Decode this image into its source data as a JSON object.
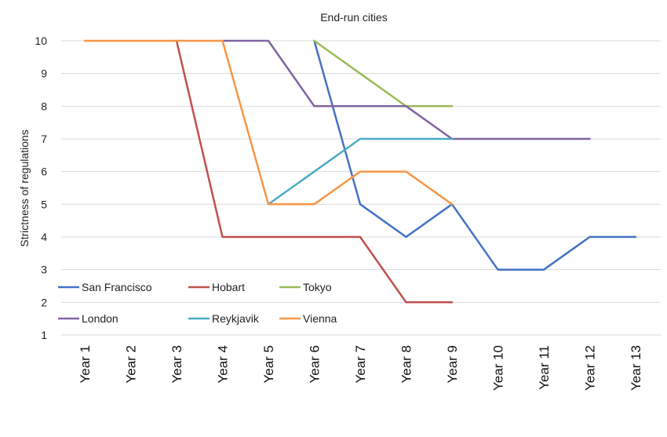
{
  "chart_data": {
    "type": "line",
    "title": "End-run cities",
    "xlabel": "",
    "ylabel": "Strictness of regulations",
    "ylim": [
      1,
      10
    ],
    "yticks": [
      1,
      2,
      3,
      4,
      5,
      6,
      7,
      8,
      9,
      10
    ],
    "grid": "horizontal",
    "legend_position": "bottom-left inside plot",
    "categories": [
      "Year 1",
      "Year 2",
      "Year 3",
      "Year 4",
      "Year 5",
      "Year 6",
      "Year 7",
      "Year 8",
      "Year 9",
      "Year 10",
      "Year 11",
      "Year 12",
      "Year 13"
    ],
    "series": [
      {
        "name": "San Francisco",
        "color": "#4472C4",
        "values": [
          null,
          null,
          null,
          null,
          null,
          10,
          5,
          4,
          5,
          3,
          3,
          4,
          4
        ]
      },
      {
        "name": "Hobart",
        "color": "#C0504D",
        "values": [
          null,
          null,
          10,
          4,
          4,
          4,
          4,
          2,
          2,
          null,
          null,
          null,
          null
        ]
      },
      {
        "name": "Tokyo",
        "color": "#9BBB59",
        "values": [
          null,
          null,
          null,
          null,
          null,
          10,
          9,
          8,
          8,
          null,
          null,
          null,
          null
        ]
      },
      {
        "name": "London",
        "color": "#8064A2",
        "values": [
          null,
          null,
          null,
          10,
          10,
          8,
          8,
          8,
          7,
          7,
          7,
          7,
          null
        ]
      },
      {
        "name": "Reykjavik",
        "color": "#4BACC6",
        "values": [
          null,
          null,
          null,
          null,
          5,
          6,
          7,
          7,
          7,
          null,
          null,
          null,
          null
        ]
      },
      {
        "name": "Vienna",
        "color": "#F79646",
        "values": [
          10,
          10,
          10,
          10,
          5,
          5,
          6,
          6,
          5,
          null,
          null,
          null,
          null
        ]
      }
    ]
  }
}
